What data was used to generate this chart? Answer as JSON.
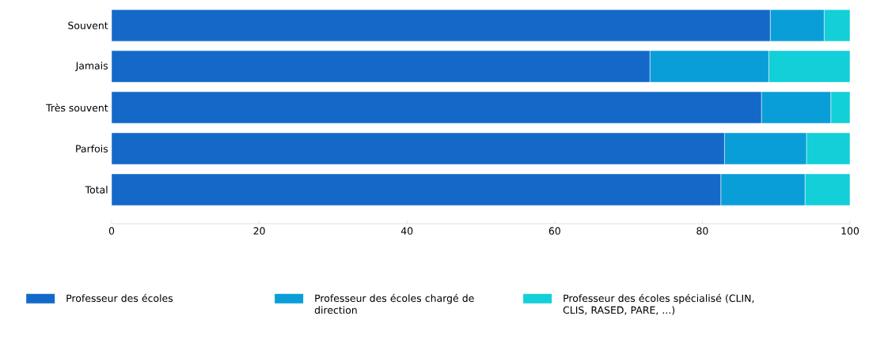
{
  "chart_data": {
    "type": "bar",
    "orientation": "horizontal",
    "stacked": true,
    "categories": [
      "Souvent",
      "Jamais",
      "Très souvent",
      "Parfois",
      "Total"
    ],
    "series": [
      {
        "name": "Professeur des écoles",
        "color": "#1469c8",
        "values": [
          89.2,
          72.9,
          88.0,
          83.0,
          82.5
        ]
      },
      {
        "name": "Professeur des écoles chargé de direction",
        "color": "#0a9ed8",
        "values": [
          7.3,
          16.1,
          9.4,
          11.1,
          11.4
        ]
      },
      {
        "name": "Professeur des écoles spécialisé (CLIN, CLIS, RASED, PARE, ...)",
        "color": "#12cfd8",
        "values": [
          3.5,
          11.0,
          2.6,
          5.9,
          6.1
        ]
      }
    ],
    "xlim": [
      0,
      100
    ],
    "xticks": [
      0,
      20,
      40,
      60,
      80,
      100
    ],
    "legend": "bottom",
    "grid": false
  }
}
